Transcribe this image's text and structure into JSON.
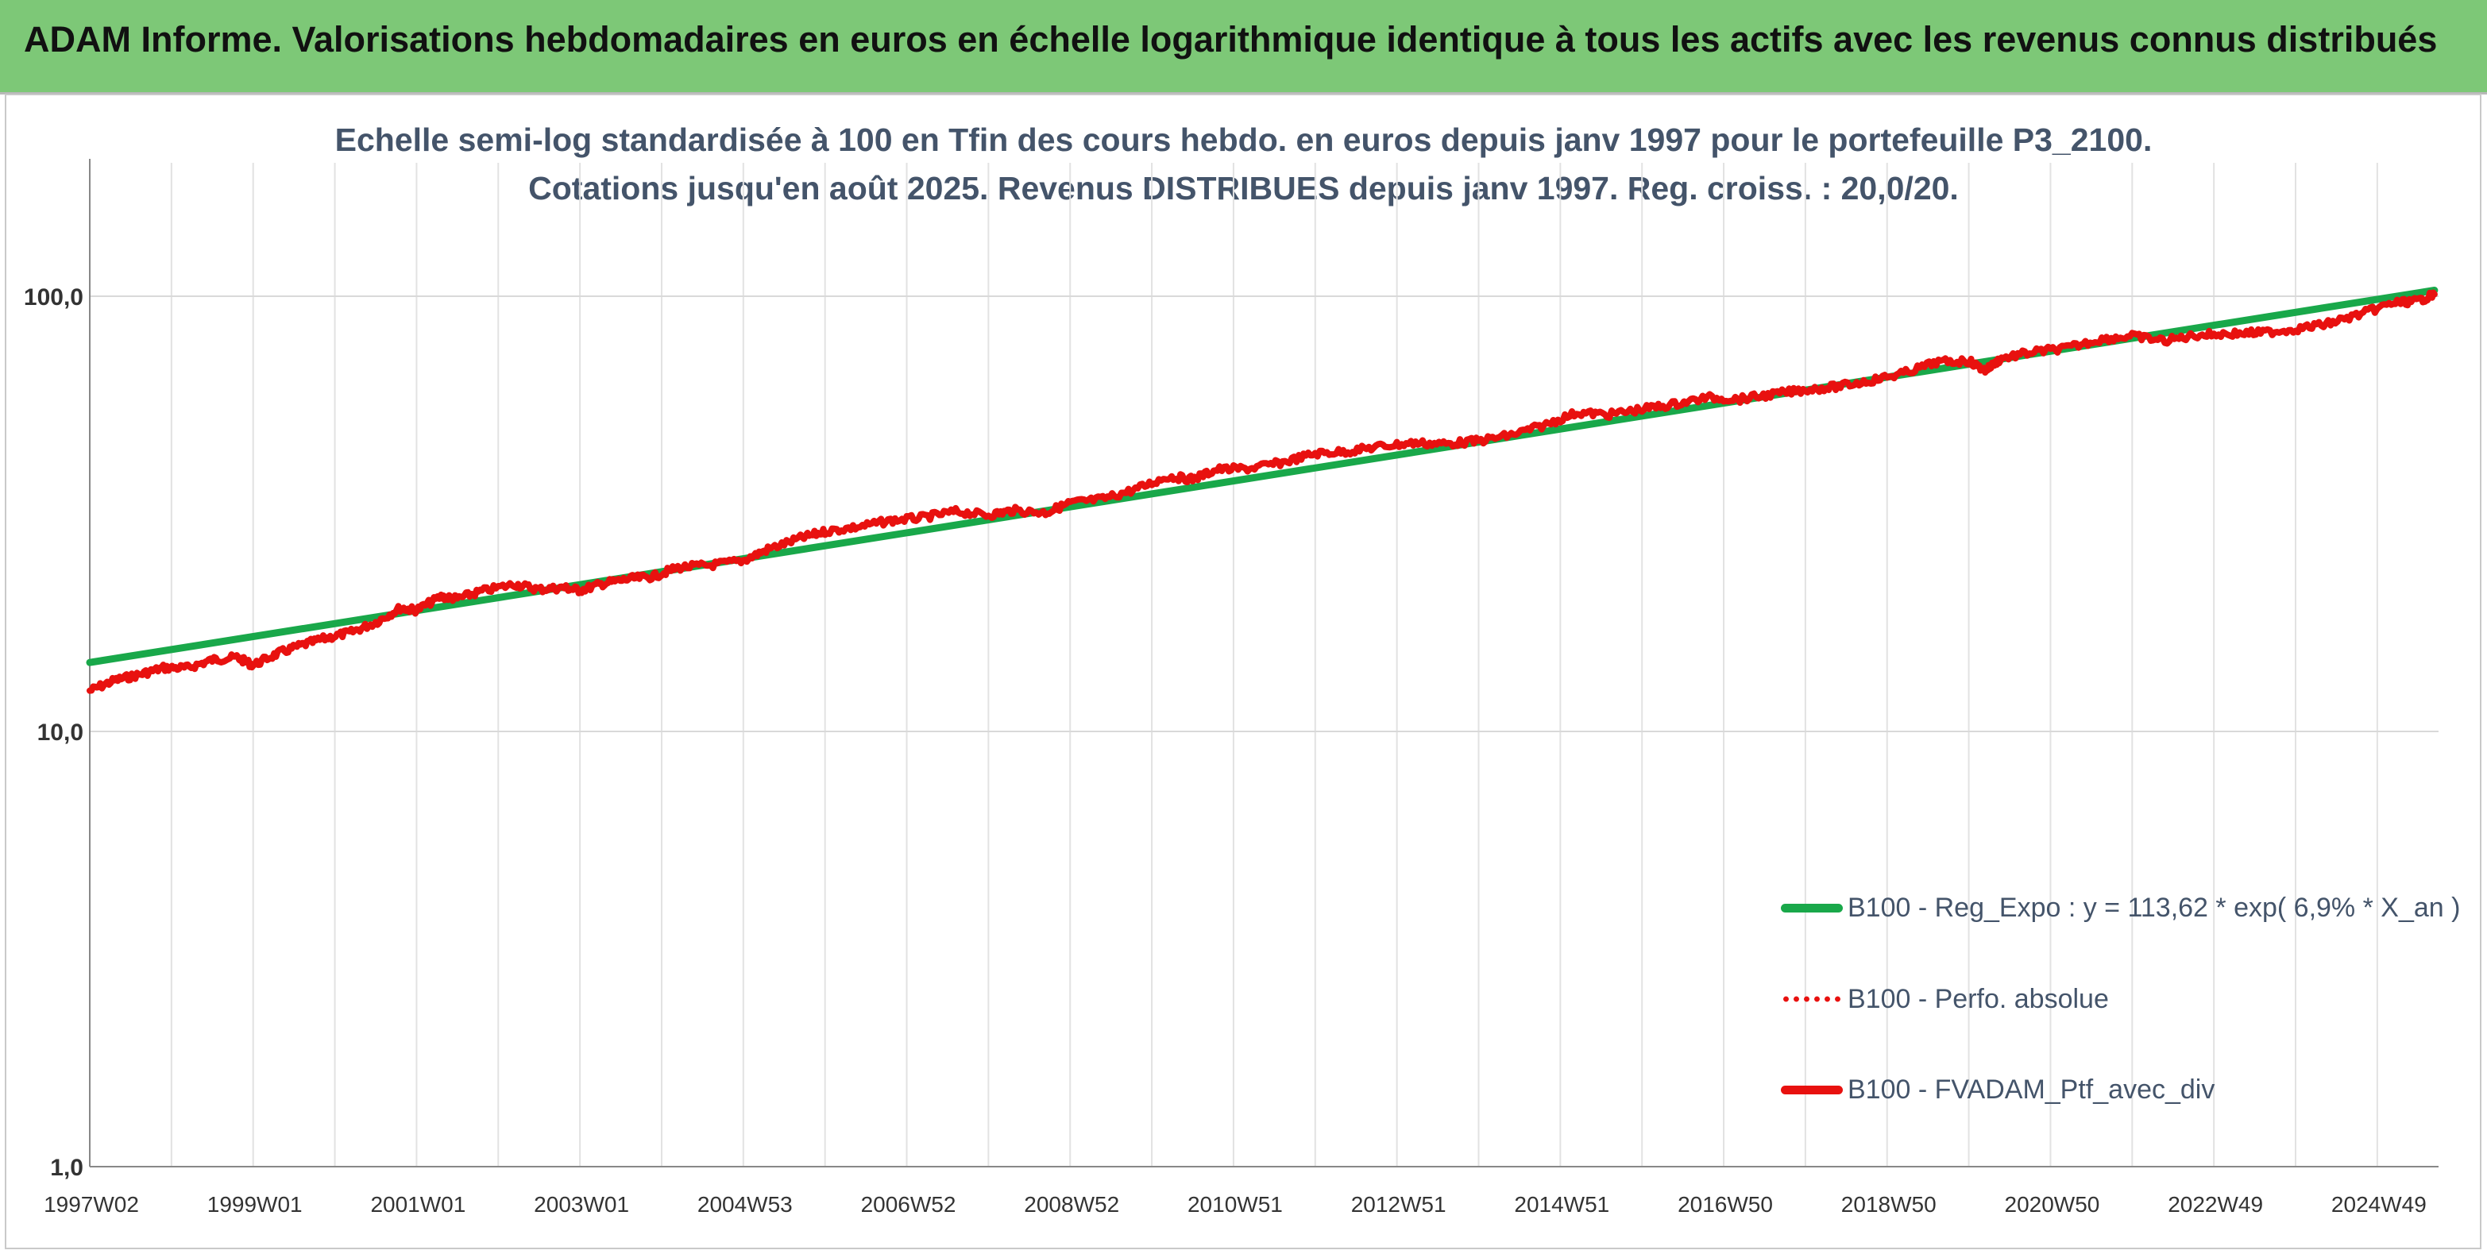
{
  "header": {
    "title": "ADAM Informe. Valorisations hebdomadaires en euros en échelle logarithmique identique à tous les actifs avec les revenus connus distribués",
    "bg_color": "#7dc877",
    "accent_color": "#f6bf15"
  },
  "chart_data": {
    "type": "line",
    "title_lines": [
      "Echelle semi-log standardisée à 100 en Tfin des cours hebdo. en euros depuis janv 1997 pour le portefeuille P3_2100.",
      "Cotations jusqu'en août 2025. Revenus DISTRIBUES depuis janv 1997. Reg. croiss. : 20,0/20."
    ],
    "xlabel": "",
    "ylabel": "",
    "y_scale": "log",
    "ylim": [
      1,
      200
    ],
    "y_ticks": [
      {
        "value": 1,
        "label": "1,0"
      },
      {
        "value": 10,
        "label": "10,0"
      },
      {
        "value": 100,
        "label": "100,0"
      }
    ],
    "xlim": [
      1997.0,
      2025.75
    ],
    "x_ticks": [
      {
        "year": 1997.0,
        "label": "1997W02"
      },
      {
        "year": 1999.0,
        "label": "1999W01"
      },
      {
        "year": 2001.0,
        "label": "2001W01"
      },
      {
        "year": 2003.0,
        "label": "2003W01"
      },
      {
        "year": 2005.0,
        "label": "2004W53"
      },
      {
        "year": 2007.0,
        "label": "2006W52"
      },
      {
        "year": 2009.0,
        "label": "2008W52"
      },
      {
        "year": 2011.0,
        "label": "2010W51"
      },
      {
        "year": 2013.0,
        "label": "2012W51"
      },
      {
        "year": 2015.0,
        "label": "2014W51"
      },
      {
        "year": 2017.0,
        "label": "2016W50"
      },
      {
        "year": 2019.0,
        "label": "2018W50"
      },
      {
        "year": 2021.0,
        "label": "2020W50"
      },
      {
        "year": 2023.0,
        "label": "2022W49"
      },
      {
        "year": 2025.0,
        "label": "2024W49"
      }
    ],
    "grid": {
      "vertical": true,
      "horizontal": true
    },
    "legend_position": "bottom-right",
    "series": [
      {
        "name": "B100 - Reg_Expo : y = 113,62 * exp( 6,9% *  X_an )",
        "color": "#19a84a",
        "style": "solid",
        "x": [
          1997.0,
          2025.7
        ],
        "y": [
          14.4,
          103.2
        ]
      },
      {
        "name": "B100 - Perfo. absolue",
        "color": "#e8110f",
        "style": "dotted",
        "x": [],
        "y": []
      },
      {
        "name": "B100 - FVADAM_Ptf_avec_div",
        "color": "#e8110f",
        "style": "solid",
        "x": [
          1997.0,
          1997.3,
          1997.6,
          1997.9,
          1998.2,
          1998.5,
          1998.8,
          1999.0,
          1999.3,
          1999.6,
          1999.9,
          2000.2,
          2000.5,
          2000.8,
          2001.0,
          2001.3,
          2001.5,
          2001.8,
          2002.2,
          2002.5,
          2002.8,
          2003.0,
          2003.3,
          2003.6,
          2003.9,
          2004.2,
          2004.6,
          2005.0,
          2005.3,
          2005.7,
          2006.0,
          2006.4,
          2006.8,
          2007.2,
          2007.6,
          2008.0,
          2008.3,
          2008.7,
          2009.0,
          2009.4,
          2009.8,
          2010.2,
          2010.5,
          2010.8,
          2011.2,
          2011.6,
          2012.0,
          2012.4,
          2012.8,
          2013.2,
          2013.6,
          2014.0,
          2014.4,
          2014.8,
          2015.2,
          2015.6,
          2016.0,
          2016.4,
          2016.8,
          2017.2,
          2017.6,
          2018.0,
          2018.4,
          2018.8,
          2019.2,
          2019.6,
          2020.0,
          2020.2,
          2020.4,
          2020.8,
          2021.2,
          2021.6,
          2022.0,
          2022.4,
          2022.8,
          2023.2,
          2023.6,
          2024.0,
          2024.4,
          2024.8,
          2025.2,
          2025.5,
          2025.7
        ],
        "y": [
          12.4,
          13.1,
          13.5,
          14.0,
          14.0,
          14.6,
          14.8,
          14.2,
          15.1,
          15.8,
          16.4,
          16.9,
          17.8,
          19.2,
          19.0,
          20.4,
          20.2,
          21.0,
          21.8,
          21.2,
          21.4,
          21.1,
          21.9,
          22.4,
          22.7,
          23.8,
          24.1,
          24.7,
          26.2,
          27.8,
          28.8,
          29.5,
          30.5,
          31.0,
          32.0,
          31.4,
          32.2,
          31.8,
          33.5,
          34.2,
          36.0,
          38.5,
          38.0,
          40.0,
          40.2,
          41.5,
          43.5,
          44.0,
          45.2,
          46.0,
          45.8,
          46.5,
          48.0,
          50.5,
          54.0,
          53.5,
          55.0,
          56.5,
          58.5,
          58.0,
          59.5,
          61.0,
          62.0,
          64.0,
          66.5,
          70.5,
          71.0,
          67.5,
          72.0,
          74.5,
          76.0,
          79.5,
          81.0,
          79.0,
          81.5,
          82.0,
          82.5,
          84.0,
          86.5,
          91.0,
          96.5,
          97.5,
          101.0
        ]
      }
    ]
  }
}
